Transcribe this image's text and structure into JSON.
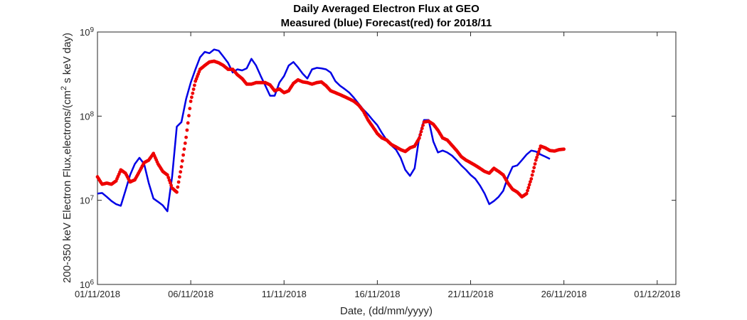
{
  "chart_data": {
    "type": "scatter",
    "title": [
      "Daily Averaged Electron Flux at GEO",
      "Measured (blue) Forecast(red) for 2018/11"
    ],
    "xlabel": "Date, (dd/mm/yyyy)",
    "ylabel": "200-350 keV Electron Flux,electrons/(cm^2 s keV day)",
    "x_unit": "date",
    "xlim": [
      "2018-11-01",
      "2018-12-02"
    ],
    "ylim": [
      1000000,
      1000000000
    ],
    "yscale": "log",
    "grid": false,
    "legend": "none",
    "x_ticks": [
      {
        "date": "2018-11-01",
        "label": "01/11/2018"
      },
      {
        "date": "2018-11-06",
        "label": "06/11/2018"
      },
      {
        "date": "2018-11-11",
        "label": "11/11/2018"
      },
      {
        "date": "2018-11-16",
        "label": "16/11/2018"
      },
      {
        "date": "2018-11-21",
        "label": "21/11/2018"
      },
      {
        "date": "2018-11-26",
        "label": "26/11/2018"
      },
      {
        "date": "2018-12-01",
        "label": "01/12/2018"
      }
    ],
    "y_ticks": [
      {
        "value": 1000000,
        "base": "10",
        "exp": "6"
      },
      {
        "value": 10000000,
        "base": "10",
        "exp": "7"
      },
      {
        "value": 100000000,
        "base": "10",
        "exp": "8"
      },
      {
        "value": 1000000000,
        "base": "10",
        "exp": "9"
      }
    ],
    "series": [
      {
        "style": "line",
        "color": "#0000e6",
        "points": [
          [
            "2018-11-01 00:00",
            12000000.0
          ],
          [
            "2018-11-01 06:00",
            12200000.0
          ],
          [
            "2018-11-01 12:00",
            11000000.0
          ],
          [
            "2018-11-01 18:00",
            9800000.0
          ],
          [
            "2018-11-02 00:00",
            9000000.0
          ],
          [
            "2018-11-02 06:00",
            8600000.0
          ],
          [
            "2018-11-02 12:00",
            13000000.0
          ],
          [
            "2018-11-02 18:00",
            20000000.0
          ],
          [
            "2018-11-03 00:00",
            27000000.0
          ],
          [
            "2018-11-03 06:00",
            32000000.0
          ],
          [
            "2018-11-03 12:00",
            27000000.0
          ],
          [
            "2018-11-03 18:00",
            16000000.0
          ],
          [
            "2018-11-04 00:00",
            10500000.0
          ],
          [
            "2018-11-04 06:00",
            9600000.0
          ],
          [
            "2018-11-04 12:00",
            8700000.0
          ],
          [
            "2018-11-04 18:00",
            7400000.0
          ],
          [
            "2018-11-05 00:00",
            19000000.0
          ],
          [
            "2018-11-05 06:00",
            75000000.0
          ],
          [
            "2018-11-05 12:00",
            85000000.0
          ],
          [
            "2018-11-05 18:00",
            160000000.0
          ],
          [
            "2018-11-06 00:00",
            250000000.0
          ],
          [
            "2018-11-06 06:00",
            360000000.0
          ],
          [
            "2018-11-06 12:00",
            500000000.0
          ],
          [
            "2018-11-06 18:00",
            580000000.0
          ],
          [
            "2018-11-07 00:00",
            560000000.0
          ],
          [
            "2018-11-07 06:00",
            620000000.0
          ],
          [
            "2018-11-07 12:00",
            600000000.0
          ],
          [
            "2018-11-07 18:00",
            510000000.0
          ],
          [
            "2018-11-08 00:00",
            430000000.0
          ],
          [
            "2018-11-08 06:00",
            330000000.0
          ],
          [
            "2018-11-08 12:00",
            360000000.0
          ],
          [
            "2018-11-08 18:00",
            350000000.0
          ],
          [
            "2018-11-09 00:00",
            370000000.0
          ],
          [
            "2018-11-09 06:00",
            480000000.0
          ],
          [
            "2018-11-09 12:00",
            400000000.0
          ],
          [
            "2018-11-09 18:00",
            300000000.0
          ],
          [
            "2018-11-10 00:00",
            230000000.0
          ],
          [
            "2018-11-10 06:00",
            175000000.0
          ],
          [
            "2018-11-10 12:00",
            175000000.0
          ],
          [
            "2018-11-10 18:00",
            250000000.0
          ],
          [
            "2018-11-11 00:00",
            300000000.0
          ],
          [
            "2018-11-11 06:00",
            400000000.0
          ],
          [
            "2018-11-11 12:00",
            440000000.0
          ],
          [
            "2018-11-11 18:00",
            380000000.0
          ],
          [
            "2018-11-12 00:00",
            320000000.0
          ],
          [
            "2018-11-12 06:00",
            280000000.0
          ],
          [
            "2018-11-12 12:00",
            360000000.0
          ],
          [
            "2018-11-12 18:00",
            375000000.0
          ],
          [
            "2018-11-13 00:00",
            370000000.0
          ],
          [
            "2018-11-13 06:00",
            360000000.0
          ],
          [
            "2018-11-13 12:00",
            330000000.0
          ],
          [
            "2018-11-13 18:00",
            260000000.0
          ],
          [
            "2018-11-14 00:00",
            230000000.0
          ],
          [
            "2018-11-14 06:00",
            210000000.0
          ],
          [
            "2018-11-14 12:00",
            190000000.0
          ],
          [
            "2018-11-14 18:00",
            165000000.0
          ],
          [
            "2018-11-15 00:00",
            140000000.0
          ],
          [
            "2018-11-15 06:00",
            120000000.0
          ],
          [
            "2018-11-15 12:00",
            105000000.0
          ],
          [
            "2018-11-15 18:00",
            90000000.0
          ],
          [
            "2018-11-16 00:00",
            78000000.0
          ],
          [
            "2018-11-16 06:00",
            63000000.0
          ],
          [
            "2018-11-16 12:00",
            52000000.0
          ],
          [
            "2018-11-16 18:00",
            45000000.0
          ],
          [
            "2018-11-17 00:00",
            40000000.0
          ],
          [
            "2018-11-17 06:00",
            32000000.0
          ],
          [
            "2018-11-17 12:00",
            23000000.0
          ],
          [
            "2018-11-17 18:00",
            19500000.0
          ],
          [
            "2018-11-18 00:00",
            24000000.0
          ],
          [
            "2018-11-18 06:00",
            57000000.0
          ],
          [
            "2018-11-18 12:00",
            90000000.0
          ],
          [
            "2018-11-18 18:00",
            90000000.0
          ],
          [
            "2018-11-19 00:00",
            50000000.0
          ],
          [
            "2018-11-19 06:00",
            37000000.0
          ],
          [
            "2018-11-19 12:00",
            39000000.0
          ],
          [
            "2018-11-19 18:00",
            37000000.0
          ],
          [
            "2018-11-20 00:00",
            34000000.0
          ],
          [
            "2018-11-20 06:00",
            30000000.0
          ],
          [
            "2018-11-20 12:00",
            26000000.0
          ],
          [
            "2018-11-20 18:00",
            23000000.0
          ],
          [
            "2018-11-21 00:00",
            20000000.0
          ],
          [
            "2018-11-21 06:00",
            18000000.0
          ],
          [
            "2018-11-21 12:00",
            15000000.0
          ],
          [
            "2018-11-21 18:00",
            12000000.0
          ],
          [
            "2018-11-22 00:00",
            9000000.0
          ],
          [
            "2018-11-22 06:00",
            9800000.0
          ],
          [
            "2018-11-22 12:00",
            11000000.0
          ],
          [
            "2018-11-22 18:00",
            13000000.0
          ],
          [
            "2018-11-23 00:00",
            19000000.0
          ],
          [
            "2018-11-23 06:00",
            25000000.0
          ],
          [
            "2018-11-23 12:00",
            26000000.0
          ],
          [
            "2018-11-23 18:00",
            30000000.0
          ],
          [
            "2018-11-24 00:00",
            35000000.0
          ],
          [
            "2018-11-24 06:00",
            39000000.0
          ],
          [
            "2018-11-24 12:00",
            38000000.0
          ],
          [
            "2018-11-24 18:00",
            35000000.0
          ],
          [
            "2018-11-25 00:00",
            33000000.0
          ],
          [
            "2018-11-25 06:00",
            31000000.0
          ]
        ]
      },
      {
        "style": "markers",
        "color": "#ee0000",
        "points": [
          [
            "2018-11-01 00:00",
            19000000.0
          ],
          [
            "2018-11-01 06:00",
            15500000.0
          ],
          [
            "2018-11-01 12:00",
            16000000.0
          ],
          [
            "2018-11-01 18:00",
            15500000.0
          ],
          [
            "2018-11-02 00:00",
            17000000.0
          ],
          [
            "2018-11-02 06:00",
            23000000.0
          ],
          [
            "2018-11-02 12:00",
            21000000.0
          ],
          [
            "2018-11-02 18:00",
            16500000.0
          ],
          [
            "2018-11-03 00:00",
            17500000.0
          ],
          [
            "2018-11-03 06:00",
            22000000.0
          ],
          [
            "2018-11-03 12:00",
            28000000.0
          ],
          [
            "2018-11-03 18:00",
            30000000.0
          ],
          [
            "2018-11-04 00:00",
            36000000.0
          ],
          [
            "2018-11-04 06:00",
            27000000.0
          ],
          [
            "2018-11-04 12:00",
            22000000.0
          ],
          [
            "2018-11-04 18:00",
            20000000.0
          ],
          [
            "2018-11-05 00:00",
            14000000.0
          ],
          [
            "2018-11-05 06:00",
            12500000.0
          ],
          [
            "2018-11-05 12:00",
            25000000.0
          ],
          [
            "2018-11-05 18:00",
            56000000.0
          ],
          [
            "2018-11-06 00:00",
            150000000.0
          ],
          [
            "2018-11-06 06:00",
            260000000.0
          ],
          [
            "2018-11-06 12:00",
            360000000.0
          ],
          [
            "2018-11-06 18:00",
            400000000.0
          ],
          [
            "2018-11-07 00:00",
            440000000.0
          ],
          [
            "2018-11-07 06:00",
            450000000.0
          ],
          [
            "2018-11-07 12:00",
            430000000.0
          ],
          [
            "2018-11-07 18:00",
            400000000.0
          ],
          [
            "2018-11-08 00:00",
            360000000.0
          ],
          [
            "2018-11-08 06:00",
            360000000.0
          ],
          [
            "2018-11-08 12:00",
            310000000.0
          ],
          [
            "2018-11-08 18:00",
            280000000.0
          ],
          [
            "2018-11-09 00:00",
            240000000.0
          ],
          [
            "2018-11-09 06:00",
            240000000.0
          ],
          [
            "2018-11-09 12:00",
            250000000.0
          ],
          [
            "2018-11-09 18:00",
            250000000.0
          ],
          [
            "2018-11-10 00:00",
            250000000.0
          ],
          [
            "2018-11-10 06:00",
            235000000.0
          ],
          [
            "2018-11-10 12:00",
            200000000.0
          ],
          [
            "2018-11-10 18:00",
            210000000.0
          ],
          [
            "2018-11-11 00:00",
            190000000.0
          ],
          [
            "2018-11-11 06:00",
            200000000.0
          ],
          [
            "2018-11-11 12:00",
            245000000.0
          ],
          [
            "2018-11-11 18:00",
            270000000.0
          ],
          [
            "2018-11-12 00:00",
            255000000.0
          ],
          [
            "2018-11-12 06:00",
            250000000.0
          ],
          [
            "2018-11-12 12:00",
            240000000.0
          ],
          [
            "2018-11-12 18:00",
            250000000.0
          ],
          [
            "2018-11-13 00:00",
            255000000.0
          ],
          [
            "2018-11-13 06:00",
            230000000.0
          ],
          [
            "2018-11-13 12:00",
            200000000.0
          ],
          [
            "2018-11-13 18:00",
            190000000.0
          ],
          [
            "2018-11-14 00:00",
            180000000.0
          ],
          [
            "2018-11-14 06:00",
            170000000.0
          ],
          [
            "2018-11-14 12:00",
            160000000.0
          ],
          [
            "2018-11-14 18:00",
            150000000.0
          ],
          [
            "2018-11-15 00:00",
            135000000.0
          ],
          [
            "2018-11-15 06:00",
            115000000.0
          ],
          [
            "2018-11-15 12:00",
            90000000.0
          ],
          [
            "2018-11-15 18:00",
            75000000.0
          ],
          [
            "2018-11-16 00:00",
            62000000.0
          ],
          [
            "2018-11-16 06:00",
            55000000.0
          ],
          [
            "2018-11-16 12:00",
            52000000.0
          ],
          [
            "2018-11-16 18:00",
            46000000.0
          ],
          [
            "2018-11-17 00:00",
            43000000.0
          ],
          [
            "2018-11-17 06:00",
            40000000.0
          ],
          [
            "2018-11-17 12:00",
            38000000.0
          ],
          [
            "2018-11-17 18:00",
            42000000.0
          ],
          [
            "2018-11-18 00:00",
            44000000.0
          ],
          [
            "2018-11-18 06:00",
            55000000.0
          ],
          [
            "2018-11-18 12:00",
            85000000.0
          ],
          [
            "2018-11-18 18:00",
            87000000.0
          ],
          [
            "2018-11-19 00:00",
            80000000.0
          ],
          [
            "2018-11-19 06:00",
            68000000.0
          ],
          [
            "2018-11-19 12:00",
            55000000.0
          ],
          [
            "2018-11-19 18:00",
            52000000.0
          ],
          [
            "2018-11-20 00:00",
            45000000.0
          ],
          [
            "2018-11-20 06:00",
            39000000.0
          ],
          [
            "2018-11-20 12:00",
            33000000.0
          ],
          [
            "2018-11-20 18:00",
            30000000.0
          ],
          [
            "2018-11-21 00:00",
            28000000.0
          ],
          [
            "2018-11-21 06:00",
            26000000.0
          ],
          [
            "2018-11-21 12:00",
            24000000.0
          ],
          [
            "2018-11-21 18:00",
            22000000.0
          ],
          [
            "2018-11-22 00:00",
            21000000.0
          ],
          [
            "2018-11-22 06:00",
            24000000.0
          ],
          [
            "2018-11-22 12:00",
            22000000.0
          ],
          [
            "2018-11-22 18:00",
            20000000.0
          ],
          [
            "2018-11-23 00:00",
            16000000.0
          ],
          [
            "2018-11-23 06:00",
            13500000.0
          ],
          [
            "2018-11-23 12:00",
            12500000.0
          ],
          [
            "2018-11-23 18:00",
            11000000.0
          ],
          [
            "2018-11-24 00:00",
            12000000.0
          ],
          [
            "2018-11-24 06:00",
            18000000.0
          ],
          [
            "2018-11-24 12:00",
            30000000.0
          ],
          [
            "2018-11-24 18:00",
            44000000.0
          ],
          [
            "2018-11-25 00:00",
            42000000.0
          ],
          [
            "2018-11-25 06:00",
            39000000.0
          ],
          [
            "2018-11-25 12:00",
            38500000.0
          ],
          [
            "2018-11-25 18:00",
            40000000.0
          ],
          [
            "2018-11-26 00:00",
            40500000.0
          ]
        ]
      }
    ]
  }
}
